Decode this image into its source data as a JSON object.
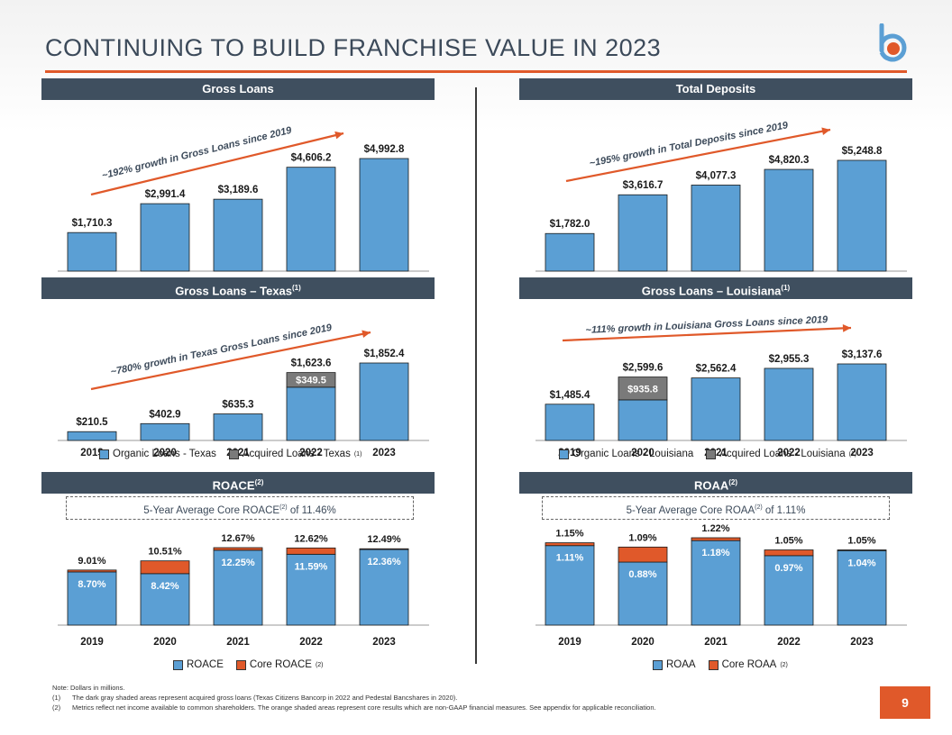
{
  "title": "CONTINUING TO BUILD FRANCHISE VALUE IN 2023",
  "page_number": "9",
  "colors": {
    "blue": "#5b9fd4",
    "gray": "#7a7a7a",
    "orange": "#e0592a",
    "header": "#3f4f5f"
  },
  "chart_data": [
    {
      "type": "bar",
      "title": "Gross Loans",
      "categories": [
        "2019",
        "2020",
        "2021",
        "2022",
        "2023"
      ],
      "series": [
        {
          "values": [
            1710.3,
            2991.4,
            3189.6,
            4606.2,
            4992.8
          ]
        }
      ],
      "data_labels": [
        "$1,710.3",
        "$2,991.4",
        "$3,189.6",
        "$4,606.2",
        "$4,992.8"
      ],
      "annotation": "~192% growth in Gross Loans since 2019"
    },
    {
      "type": "bar",
      "title": "Total Deposits",
      "categories": [
        "2019",
        "2020",
        "2021",
        "2022",
        "2023"
      ],
      "series": [
        {
          "values": [
            1782.0,
            3616.7,
            4077.3,
            4820.3,
            5248.8
          ]
        }
      ],
      "data_labels": [
        "$1,782.0",
        "$3,616.7",
        "$4,077.3",
        "$4,820.3",
        "$5,248.8"
      ],
      "annotation": "~195% growth in Total Deposits since 2019"
    },
    {
      "type": "bar",
      "title": "Gross Loans – Texas",
      "title_sup": "(1)",
      "categories": [
        "2019",
        "2020",
        "2021",
        "2022",
        "2023"
      ],
      "series": [
        {
          "name": "Organic Loans - Texas",
          "values": [
            210.5,
            402.9,
            635.3,
            1274.1,
            1852.4
          ]
        },
        {
          "name": "Acquired Loans - Texas",
          "name_sup": "(1)",
          "values": [
            0,
            0,
            0,
            349.5,
            0
          ]
        }
      ],
      "data_labels": [
        "$210.5",
        "$402.9",
        "$635.3",
        "$1,623.6",
        "$1,852.4"
      ],
      "segment_labels": [
        "",
        "",
        "",
        "$349.5",
        ""
      ],
      "annotation": "~780% growth in Texas Gross Loans since 2019"
    },
    {
      "type": "bar",
      "title": "Gross Loans – Louisiana",
      "title_sup": "(1)",
      "categories": [
        "2019",
        "2020",
        "2021",
        "2022",
        "2023"
      ],
      "series": [
        {
          "name": "Organic Loans - Louisiana",
          "values": [
            1485.4,
            1663.8,
            2562.4,
            2955.3,
            3137.6
          ]
        },
        {
          "name": "Acquired Loans - Louisiana",
          "name_sup": "(1)",
          "values": [
            0,
            935.8,
            0,
            0,
            0
          ]
        }
      ],
      "data_labels": [
        "$1,485.4",
        "$2,599.6",
        "$2,562.4",
        "$2,955.3",
        "$3,137.6"
      ],
      "segment_labels": [
        "",
        "$935.8",
        "",
        "",
        ""
      ],
      "annotation": "~111% growth in Louisiana Gross Loans since 2019"
    },
    {
      "type": "bar",
      "title": "ROACE",
      "title_sup": "(2)",
      "categories": [
        "2019",
        "2020",
        "2021",
        "2022",
        "2023"
      ],
      "series": [
        {
          "name": "ROACE",
          "values": [
            8.7,
            8.42,
            12.25,
            11.59,
            12.36
          ]
        },
        {
          "name": "Core ROACE",
          "name_sup": "(2)",
          "values": [
            9.01,
            10.51,
            12.67,
            12.62,
            12.49
          ]
        }
      ],
      "inner_labels": [
        "8.70%",
        "8.42%",
        "12.25%",
        "11.59%",
        "12.36%"
      ],
      "top_labels": [
        "9.01%",
        "10.51%",
        "12.67%",
        "12.62%",
        "12.49%"
      ],
      "avg_note": {
        "pre": "5-Year Average Core ROACE",
        "sup": "(2)",
        "post": " of 11.46%"
      }
    },
    {
      "type": "bar",
      "title": "ROAA",
      "title_sup": "(2)",
      "categories": [
        "2019",
        "2020",
        "2021",
        "2022",
        "2023"
      ],
      "series": [
        {
          "name": "ROAA",
          "values": [
            1.11,
            0.88,
            1.18,
            0.97,
            1.04
          ]
        },
        {
          "name": "Core ROAA",
          "name_sup": "(2)",
          "values": [
            1.15,
            1.09,
            1.22,
            1.05,
            1.05
          ]
        }
      ],
      "inner_labels": [
        "1.11%",
        "0.88%",
        "1.18%",
        "0.97%",
        "1.04%"
      ],
      "top_labels": [
        "1.15%",
        "1.09%",
        "1.22%",
        "1.05%",
        "1.05%"
      ],
      "avg_note": {
        "pre": "5-Year Average Core ROAA",
        "sup": "(2)",
        "post": " of 1.11%"
      }
    }
  ],
  "notes": {
    "intro": "Note: Dollars in millions.",
    "items": [
      {
        "num": "(1)",
        "text": "The dark gray shaded areas represent acquired gross loans (Texas Citizens Bancorp in 2022 and Pedestal Bancshares in 2020)."
      },
      {
        "num": "(2)",
        "text": "Metrics reflect net income available to common shareholders. The orange shaded areas represent core results which are non-GAAP financial measures. See appendix for applicable reconciliation."
      }
    ]
  }
}
